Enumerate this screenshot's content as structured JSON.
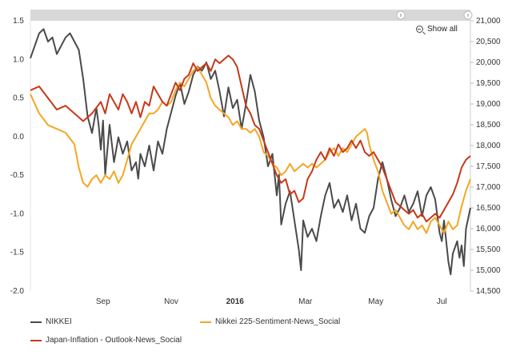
{
  "toolbar": {
    "show_all_label": "Show all",
    "zoom_icon": "zoom-out-icon"
  },
  "legend": [
    {
      "label": "NIKKEI",
      "color": "#4a4a4a"
    },
    {
      "label": "Nikkei 225-Sentiment-News_Social",
      "color": "#f5a623"
    },
    {
      "label": "Japan-Inflation - Outlook-News_Social",
      "color": "#c8381a"
    }
  ],
  "chart_data": {
    "type": "line",
    "x_tick_labels": [
      "Sep",
      "Nov",
      "2016",
      "Mar",
      "May",
      "Jul"
    ],
    "x_tick_bold": [
      false,
      false,
      true,
      false,
      false,
      false
    ],
    "x_tick_positions": [
      0.165,
      0.32,
      0.465,
      0.625,
      0.785,
      0.935
    ],
    "y_left": {
      "min": -2.0,
      "max": 1.5,
      "ticks": [
        "-2.0",
        "-1.5",
        "-1.0",
        "-0.5",
        "0.0",
        "0.5",
        "1.0",
        "1.5"
      ]
    },
    "y_right": {
      "min": 14500,
      "max": 21000,
      "ticks": [
        "14,500",
        "15,000",
        "15,500",
        "16,000",
        "16,500",
        "17,000",
        "17,500",
        "18,000",
        "18,500",
        "19,000",
        "19,500",
        "20,000",
        "20,500",
        "21,000"
      ]
    },
    "series": [
      {
        "name": "NIKKEI",
        "axis": "right",
        "color": "#4a4a4a",
        "points": [
          [
            0.0,
            20100
          ],
          [
            0.01,
            20400
          ],
          [
            0.02,
            20700
          ],
          [
            0.03,
            20800
          ],
          [
            0.04,
            20500
          ],
          [
            0.05,
            20600
          ],
          [
            0.06,
            20200
          ],
          [
            0.07,
            20400
          ],
          [
            0.08,
            20600
          ],
          [
            0.09,
            20700
          ],
          [
            0.1,
            20500
          ],
          [
            0.11,
            20300
          ],
          [
            0.12,
            19600
          ],
          [
            0.13,
            18700
          ],
          [
            0.14,
            18300
          ],
          [
            0.15,
            18900
          ],
          [
            0.155,
            18500
          ],
          [
            0.16,
            17900
          ],
          [
            0.165,
            18600
          ],
          [
            0.17,
            17300
          ],
          [
            0.18,
            18500
          ],
          [
            0.19,
            17600
          ],
          [
            0.2,
            18200
          ],
          [
            0.21,
            17800
          ],
          [
            0.22,
            18100
          ],
          [
            0.23,
            17400
          ],
          [
            0.24,
            17600
          ],
          [
            0.245,
            17200
          ],
          [
            0.25,
            17800
          ],
          [
            0.26,
            17500
          ],
          [
            0.27,
            18000
          ],
          [
            0.28,
            17400
          ],
          [
            0.29,
            18100
          ],
          [
            0.3,
            17800
          ],
          [
            0.31,
            18400
          ],
          [
            0.32,
            18800
          ],
          [
            0.33,
            19200
          ],
          [
            0.34,
            19500
          ],
          [
            0.35,
            19000
          ],
          [
            0.36,
            19300
          ],
          [
            0.37,
            19700
          ],
          [
            0.38,
            19900
          ],
          [
            0.39,
            19800
          ],
          [
            0.4,
            20000
          ],
          [
            0.41,
            19600
          ],
          [
            0.42,
            19800
          ],
          [
            0.43,
            19300
          ],
          [
            0.44,
            18700
          ],
          [
            0.45,
            19400
          ],
          [
            0.46,
            18900
          ],
          [
            0.47,
            19100
          ],
          [
            0.48,
            18400
          ],
          [
            0.49,
            19000
          ],
          [
            0.5,
            19700
          ],
          [
            0.51,
            19300
          ],
          [
            0.52,
            18600
          ],
          [
            0.53,
            18200
          ],
          [
            0.54,
            17500
          ],
          [
            0.55,
            17800
          ],
          [
            0.56,
            16800
          ],
          [
            0.565,
            17300
          ],
          [
            0.57,
            16100
          ],
          [
            0.58,
            16600
          ],
          [
            0.59,
            16900
          ],
          [
            0.6,
            16200
          ],
          [
            0.61,
            15500
          ],
          [
            0.615,
            15000
          ],
          [
            0.62,
            16200
          ],
          [
            0.63,
            15800
          ],
          [
            0.64,
            16000
          ],
          [
            0.65,
            15700
          ],
          [
            0.66,
            16300
          ],
          [
            0.67,
            16800
          ],
          [
            0.68,
            17100
          ],
          [
            0.69,
            16500
          ],
          [
            0.7,
            16700
          ],
          [
            0.71,
            16400
          ],
          [
            0.72,
            16800
          ],
          [
            0.73,
            16200
          ],
          [
            0.74,
            16600
          ],
          [
            0.75,
            16000
          ],
          [
            0.76,
            15900
          ],
          [
            0.77,
            16300
          ],
          [
            0.78,
            16500
          ],
          [
            0.79,
            17200
          ],
          [
            0.8,
            17600
          ],
          [
            0.81,
            17200
          ],
          [
            0.82,
            16700
          ],
          [
            0.83,
            16300
          ],
          [
            0.84,
            16500
          ],
          [
            0.85,
            16800
          ],
          [
            0.86,
            16400
          ],
          [
            0.87,
            16600
          ],
          [
            0.88,
            16900
          ],
          [
            0.89,
            16300
          ],
          [
            0.9,
            16800
          ],
          [
            0.91,
            17000
          ],
          [
            0.92,
            16700
          ],
          [
            0.93,
            15900
          ],
          [
            0.935,
            15700
          ],
          [
            0.94,
            16200
          ],
          [
            0.95,
            15200
          ],
          [
            0.955,
            14900
          ],
          [
            0.96,
            15400
          ],
          [
            0.97,
            15700
          ],
          [
            0.975,
            15300
          ],
          [
            0.98,
            15600
          ],
          [
            0.985,
            15100
          ],
          [
            0.99,
            16000
          ],
          [
            1.0,
            16500
          ]
        ]
      },
      {
        "name": "Nikkei 225-Sentiment-News_Social",
        "axis": "left",
        "color": "#f5a623",
        "points": [
          [
            0.0,
            0.55
          ],
          [
            0.02,
            0.3
          ],
          [
            0.04,
            0.15
          ],
          [
            0.06,
            0.1
          ],
          [
            0.08,
            0.05
          ],
          [
            0.1,
            -0.1
          ],
          [
            0.11,
            -0.4
          ],
          [
            0.12,
            -0.6
          ],
          [
            0.13,
            -0.65
          ],
          [
            0.14,
            -0.55
          ],
          [
            0.15,
            -0.5
          ],
          [
            0.16,
            -0.6
          ],
          [
            0.17,
            -0.5
          ],
          [
            0.18,
            -0.55
          ],
          [
            0.19,
            -0.45
          ],
          [
            0.2,
            -0.6
          ],
          [
            0.21,
            -0.5
          ],
          [
            0.22,
            -0.3
          ],
          [
            0.23,
            -0.1
          ],
          [
            0.24,
            0.0
          ],
          [
            0.25,
            0.1
          ],
          [
            0.26,
            0.2
          ],
          [
            0.27,
            0.3
          ],
          [
            0.28,
            0.3
          ],
          [
            0.29,
            0.35
          ],
          [
            0.3,
            0.45
          ],
          [
            0.31,
            0.4
          ],
          [
            0.32,
            0.45
          ],
          [
            0.33,
            0.6
          ],
          [
            0.34,
            0.7
          ],
          [
            0.35,
            0.65
          ],
          [
            0.36,
            0.75
          ],
          [
            0.37,
            0.85
          ],
          [
            0.38,
            0.9
          ],
          [
            0.39,
            0.8
          ],
          [
            0.4,
            0.7
          ],
          [
            0.41,
            0.5
          ],
          [
            0.42,
            0.4
          ],
          [
            0.43,
            0.35
          ],
          [
            0.44,
            0.3
          ],
          [
            0.45,
            0.25
          ],
          [
            0.46,
            0.15
          ],
          [
            0.47,
            0.2
          ],
          [
            0.48,
            0.1
          ],
          [
            0.49,
            0.1
          ],
          [
            0.5,
            0.05
          ],
          [
            0.51,
            0.1
          ],
          [
            0.52,
            0.0
          ],
          [
            0.53,
            -0.2
          ],
          [
            0.54,
            -0.25
          ],
          [
            0.55,
            -0.35
          ],
          [
            0.56,
            -0.4
          ],
          [
            0.57,
            -0.5
          ],
          [
            0.58,
            -0.45
          ],
          [
            0.59,
            -0.35
          ],
          [
            0.6,
            -0.45
          ],
          [
            0.61,
            -0.4
          ],
          [
            0.62,
            -0.35
          ],
          [
            0.63,
            -0.4
          ],
          [
            0.64,
            -0.35
          ],
          [
            0.65,
            -0.4
          ],
          [
            0.66,
            -0.35
          ],
          [
            0.67,
            -0.3
          ],
          [
            0.68,
            -0.2
          ],
          [
            0.69,
            -0.15
          ],
          [
            0.7,
            -0.25
          ],
          [
            0.71,
            -0.15
          ],
          [
            0.72,
            -0.2
          ],
          [
            0.73,
            -0.1
          ],
          [
            0.74,
            0.0
          ],
          [
            0.75,
            0.05
          ],
          [
            0.76,
            0.1
          ],
          [
            0.765,
            0.05
          ],
          [
            0.77,
            -0.1
          ],
          [
            0.78,
            -0.3
          ],
          [
            0.79,
            -0.45
          ],
          [
            0.8,
            -0.7
          ],
          [
            0.81,
            -0.85
          ],
          [
            0.82,
            -1.0
          ],
          [
            0.83,
            -0.95
          ],
          [
            0.84,
            -1.05
          ],
          [
            0.85,
            -1.15
          ],
          [
            0.86,
            -1.2
          ],
          [
            0.87,
            -1.1
          ],
          [
            0.88,
            -1.2
          ],
          [
            0.89,
            -1.15
          ],
          [
            0.9,
            -1.25
          ],
          [
            0.91,
            -1.1
          ],
          [
            0.92,
            -1.05
          ],
          [
            0.93,
            -1.15
          ],
          [
            0.94,
            -1.25
          ],
          [
            0.95,
            -1.1
          ],
          [
            0.96,
            -1.2
          ],
          [
            0.97,
            -1.15
          ],
          [
            0.98,
            -0.9
          ],
          [
            0.99,
            -0.7
          ],
          [
            1.0,
            -0.55
          ]
        ]
      },
      {
        "name": "Japan-Inflation - Outlook-News_Social",
        "axis": "left",
        "color": "#c8381a",
        "points": [
          [
            0.0,
            0.6
          ],
          [
            0.02,
            0.65
          ],
          [
            0.04,
            0.5
          ],
          [
            0.06,
            0.35
          ],
          [
            0.08,
            0.4
          ],
          [
            0.1,
            0.3
          ],
          [
            0.12,
            0.2
          ],
          [
            0.14,
            0.3
          ],
          [
            0.16,
            0.45
          ],
          [
            0.17,
            0.3
          ],
          [
            0.18,
            0.55
          ],
          [
            0.19,
            0.45
          ],
          [
            0.2,
            0.35
          ],
          [
            0.21,
            0.55
          ],
          [
            0.22,
            0.45
          ],
          [
            0.23,
            0.3
          ],
          [
            0.24,
            0.45
          ],
          [
            0.25,
            0.25
          ],
          [
            0.26,
            0.45
          ],
          [
            0.27,
            0.4
          ],
          [
            0.28,
            0.65
          ],
          [
            0.29,
            0.55
          ],
          [
            0.3,
            0.45
          ],
          [
            0.31,
            0.4
          ],
          [
            0.32,
            0.55
          ],
          [
            0.33,
            0.7
          ],
          [
            0.34,
            0.6
          ],
          [
            0.35,
            0.75
          ],
          [
            0.36,
            0.8
          ],
          [
            0.37,
            0.95
          ],
          [
            0.38,
            0.85
          ],
          [
            0.39,
            0.9
          ],
          [
            0.4,
            0.95
          ],
          [
            0.41,
            0.85
          ],
          [
            0.42,
            1.0
          ],
          [
            0.43,
            0.95
          ],
          [
            0.44,
            1.0
          ],
          [
            0.45,
            1.05
          ],
          [
            0.46,
            1.0
          ],
          [
            0.47,
            0.9
          ],
          [
            0.48,
            0.65
          ],
          [
            0.49,
            0.4
          ],
          [
            0.5,
            0.3
          ],
          [
            0.51,
            0.15
          ],
          [
            0.52,
            0.1
          ],
          [
            0.53,
            -0.05
          ],
          [
            0.54,
            -0.2
          ],
          [
            0.55,
            -0.35
          ],
          [
            0.56,
            -0.5
          ],
          [
            0.57,
            -0.6
          ],
          [
            0.58,
            -0.55
          ],
          [
            0.59,
            -0.75
          ],
          [
            0.6,
            -0.7
          ],
          [
            0.61,
            -0.85
          ],
          [
            0.62,
            -0.8
          ],
          [
            0.63,
            -0.55
          ],
          [
            0.64,
            -0.45
          ],
          [
            0.65,
            -0.3
          ],
          [
            0.66,
            -0.2
          ],
          [
            0.67,
            -0.3
          ],
          [
            0.68,
            -0.15
          ],
          [
            0.69,
            -0.25
          ],
          [
            0.7,
            -0.1
          ],
          [
            0.71,
            -0.2
          ],
          [
            0.72,
            -0.15
          ],
          [
            0.73,
            -0.05
          ],
          [
            0.74,
            -0.15
          ],
          [
            0.75,
            -0.05
          ],
          [
            0.76,
            -0.2
          ],
          [
            0.77,
            -0.25
          ],
          [
            0.78,
            -0.2
          ],
          [
            0.79,
            -0.3
          ],
          [
            0.8,
            -0.4
          ],
          [
            0.81,
            -0.55
          ],
          [
            0.82,
            -0.7
          ],
          [
            0.83,
            -0.85
          ],
          [
            0.84,
            -0.9
          ],
          [
            0.85,
            -0.95
          ],
          [
            0.86,
            -1.0
          ],
          [
            0.87,
            -0.95
          ],
          [
            0.88,
            -1.05
          ],
          [
            0.89,
            -1.0
          ],
          [
            0.9,
            -1.1
          ],
          [
            0.91,
            -1.05
          ],
          [
            0.92,
            -1.0
          ],
          [
            0.93,
            -1.05
          ],
          [
            0.94,
            -0.95
          ],
          [
            0.95,
            -0.85
          ],
          [
            0.96,
            -0.75
          ],
          [
            0.97,
            -0.6
          ],
          [
            0.98,
            -0.4
          ],
          [
            0.99,
            -0.3
          ],
          [
            1.0,
            -0.25
          ]
        ]
      }
    ]
  }
}
